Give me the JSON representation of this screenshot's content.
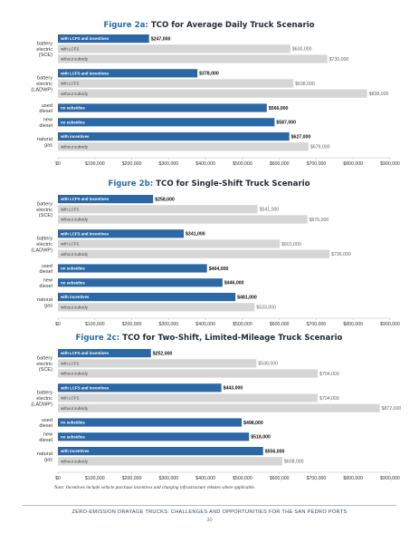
{
  "chart_data": [
    {
      "type": "bar",
      "orientation": "horizontal",
      "figure_label": "Figure 2a:",
      "title": "TCO for Average Daily Truck Scenario",
      "xlim": [
        0,
        900000
      ],
      "xticks": [
        "$0",
        "$100,000",
        "$200,000",
        "$300,000",
        "$400,000",
        "$500,000",
        "$600,000",
        "$700,000",
        "$800,000",
        "$900,000"
      ],
      "groups": [
        {
          "category": "battery\nelectric\n(SCE)",
          "bars": [
            {
              "label": "with LCFS and incentives",
              "value": 247000,
              "value_label": "$247,000",
              "color": "#2c68a6"
            },
            {
              "label": "with LCFS",
              "value": 630000,
              "value_label": "$630,000",
              "color": "#d6d6d6"
            },
            {
              "label": "without subsidy",
              "value": 730000,
              "value_label": "$730,000",
              "color": "#d6d6d6"
            }
          ]
        },
        {
          "category": "battery\nelectric\n(LADWP)",
          "bars": [
            {
              "label": "with LCFS and incentives",
              "value": 378000,
              "value_label": "$378,000",
              "color": "#2c68a6"
            },
            {
              "label": "with LCFS",
              "value": 638000,
              "value_label": "$638,000",
              "color": "#d6d6d6"
            },
            {
              "label": "without subsidy",
              "value": 838000,
              "value_label": "$838,000",
              "color": "#d6d6d6"
            }
          ]
        },
        {
          "category": "used\ndiesel",
          "bars": [
            {
              "label": "no subsidies",
              "value": 566000,
              "value_label": "$566,000",
              "color": "#2c68a6"
            }
          ]
        },
        {
          "category": "new\ndiesel",
          "bars": [
            {
              "label": "no subsidies",
              "value": 587000,
              "value_label": "$587,000",
              "color": "#2c68a6"
            }
          ]
        },
        {
          "category": "natural\ngas",
          "bars": [
            {
              "label": "with incentives",
              "value": 627000,
              "value_label": "$627,000",
              "color": "#2c68a6"
            },
            {
              "label": "without subsidy",
              "value": 679000,
              "value_label": "$679,000",
              "color": "#d6d6d6"
            }
          ]
        }
      ]
    },
    {
      "type": "bar",
      "orientation": "horizontal",
      "figure_label": "Figure 2b:",
      "title": "TCO for Single-Shift Truck Scenario",
      "xlim": [
        0,
        900000
      ],
      "xticks": [
        "$0",
        "$100,000",
        "$200,000",
        "$300,000",
        "$400,000",
        "$500,000",
        "$600,000",
        "$700,000",
        "$800,000",
        "$900,000"
      ],
      "groups": [
        {
          "category": "battery\nelectric\n(SCE)",
          "bars": [
            {
              "label": "with LCFS and incentives",
              "value": 258000,
              "value_label": "$258,000",
              "color": "#2c68a6"
            },
            {
              "label": "with LCFS",
              "value": 541000,
              "value_label": "$541,000",
              "color": "#d6d6d6"
            },
            {
              "label": "without subsidy",
              "value": 676000,
              "value_label": "$676,000",
              "color": "#d6d6d6"
            }
          ]
        },
        {
          "category": "battery\nelectric\n(LADWP)",
          "bars": [
            {
              "label": "with LCFS and incentives",
              "value": 341000,
              "value_label": "$341,000",
              "color": "#2c68a6"
            },
            {
              "label": "with LCFS",
              "value": 601000,
              "value_label": "$601,000",
              "color": "#d6d6d6"
            },
            {
              "label": "without subsidy",
              "value": 736000,
              "value_label": "$736,000",
              "color": "#d6d6d6"
            }
          ]
        },
        {
          "category": "used\ndiesel",
          "bars": [
            {
              "label": "no subsidies",
              "value": 404000,
              "value_label": "$404,000",
              "color": "#2c68a6"
            }
          ]
        },
        {
          "category": "new\ndiesel",
          "bars": [
            {
              "label": "no subsidies",
              "value": 446000,
              "value_label": "$446,000",
              "color": "#2c68a6"
            }
          ]
        },
        {
          "category": "natural\ngas",
          "bars": [
            {
              "label": "with incentives",
              "value": 481000,
              "value_label": "$481,000",
              "color": "#2c68a6"
            },
            {
              "label": "without subsidy",
              "value": 533000,
              "value_label": "$533,000",
              "color": "#d6d6d6"
            }
          ]
        }
      ]
    },
    {
      "type": "bar",
      "orientation": "horizontal",
      "figure_label": "Figure 2c:",
      "title": "TCO for Two-Shift, Limited-Mileage Truck Scenario",
      "xlim": [
        0,
        900000
      ],
      "xticks": [
        "$0",
        "$100,000",
        "$200,000",
        "$300,000",
        "$400,000",
        "$500,000",
        "$600,000",
        "$700,000",
        "$800,000",
        "$900,000"
      ],
      "groups": [
        {
          "category": "battery\nelectric\n(SCE)",
          "bars": [
            {
              "label": "with LCFS and incentives",
              "value": 252000,
              "value_label": "$252,000",
              "color": "#2c68a6"
            },
            {
              "label": "with LCFS",
              "value": 538000,
              "value_label": "$538,000",
              "color": "#d6d6d6"
            },
            {
              "label": "without subsidy",
              "value": 704000,
              "value_label": "$704,000",
              "color": "#d6d6d6"
            }
          ]
        },
        {
          "category": "battery\nelectric\n(LADWP)",
          "bars": [
            {
              "label": "with LCFS and incentives",
              "value": 443000,
              "value_label": "$443,000",
              "color": "#2c68a6"
            },
            {
              "label": "with LCFS",
              "value": 704000,
              "value_label": "$704,000",
              "color": "#d6d6d6"
            },
            {
              "label": "without subsidy",
              "value": 872000,
              "value_label": "$872,000",
              "color": "#d6d6d6"
            }
          ]
        },
        {
          "category": "used\ndiesel",
          "bars": [
            {
              "label": "no subsidies",
              "value": 498000,
              "value_label": "$498,000",
              "color": "#2c68a6"
            }
          ]
        },
        {
          "category": "new\ndiesel",
          "bars": [
            {
              "label": "no subsidies",
              "value": 518000,
              "value_label": "$518,000",
              "color": "#2c68a6"
            }
          ]
        },
        {
          "category": "natural\ngas",
          "bars": [
            {
              "label": "with incentives",
              "value": 556000,
              "value_label": "$556,000",
              "color": "#2c68a6"
            },
            {
              "label": "without subsidy",
              "value": 608000,
              "value_label": "$608,000",
              "color": "#d6d6d6"
            }
          ]
        }
      ]
    }
  ],
  "note": "Note: Incentives include vehicle purchase incentives and charging infrastructure rebates where applicable.",
  "footer": {
    "title": "ZERO-EMISSION DRAYAGE TRUCKS: CHALLENGES AND OPPORTUNITIES FOR THE SAN PEDRO PORTS",
    "page": "30"
  }
}
